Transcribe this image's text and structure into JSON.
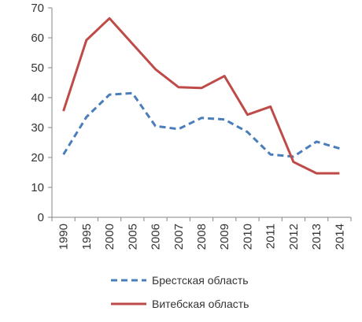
{
  "chart_data": {
    "type": "line",
    "title": "",
    "xlabel": "",
    "ylabel": "",
    "categories": [
      "1990",
      "1995",
      "2000",
      "2005",
      "2006",
      "2007",
      "2008",
      "2009",
      "2010",
      "2011",
      "2012",
      "2013",
      "2014"
    ],
    "ylim": [
      0,
      70
    ],
    "yticks": [
      0,
      10,
      20,
      30,
      40,
      50,
      60,
      70
    ],
    "grid": false,
    "legend": "bottom",
    "series": [
      {
        "name": "Брестская область",
        "color": "#4a7ebb",
        "style": "dashed",
        "values": [
          21,
          33.5,
          41,
          41.5,
          30.5,
          29.5,
          33.2,
          32.7,
          28.5,
          21,
          20.3,
          25.3,
          23
        ]
      },
      {
        "name": "Витебская область",
        "color": "#be4b48",
        "style": "solid",
        "values": [
          35.5,
          59.2,
          66.5,
          58,
          49.5,
          43.5,
          43.2,
          47.2,
          34.3,
          37,
          18.5,
          14.7,
          14.7
        ]
      }
    ]
  }
}
